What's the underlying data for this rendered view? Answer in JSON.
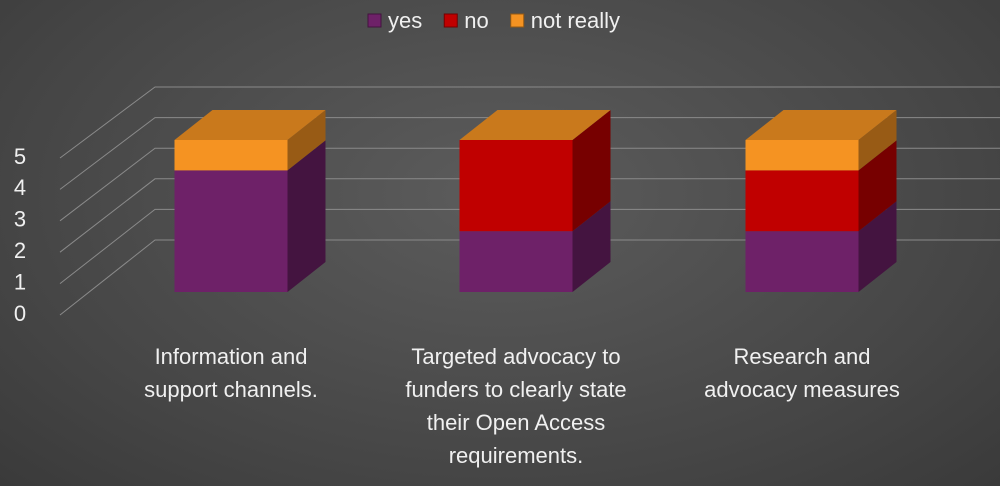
{
  "chart_data": {
    "type": "bar3d_stacked",
    "categories": [
      "Information and support channels.",
      "Targeted advocacy to funders to clearly state their Open Access requirements.",
      "Research and advocacy measures"
    ],
    "series": [
      {
        "name": "yes",
        "color": "#6e2168",
        "values": [
          4,
          2,
          2
        ]
      },
      {
        "name": "no",
        "color": "#c00000",
        "values": [
          0,
          3,
          2
        ]
      },
      {
        "name": "not really",
        "color": "#f59322",
        "values": [
          1,
          0,
          1
        ]
      }
    ],
    "ylim": [
      0,
      5
    ],
    "yticks": [
      0,
      1,
      2,
      3,
      4,
      5
    ],
    "grid": true,
    "legend": "top"
  }
}
